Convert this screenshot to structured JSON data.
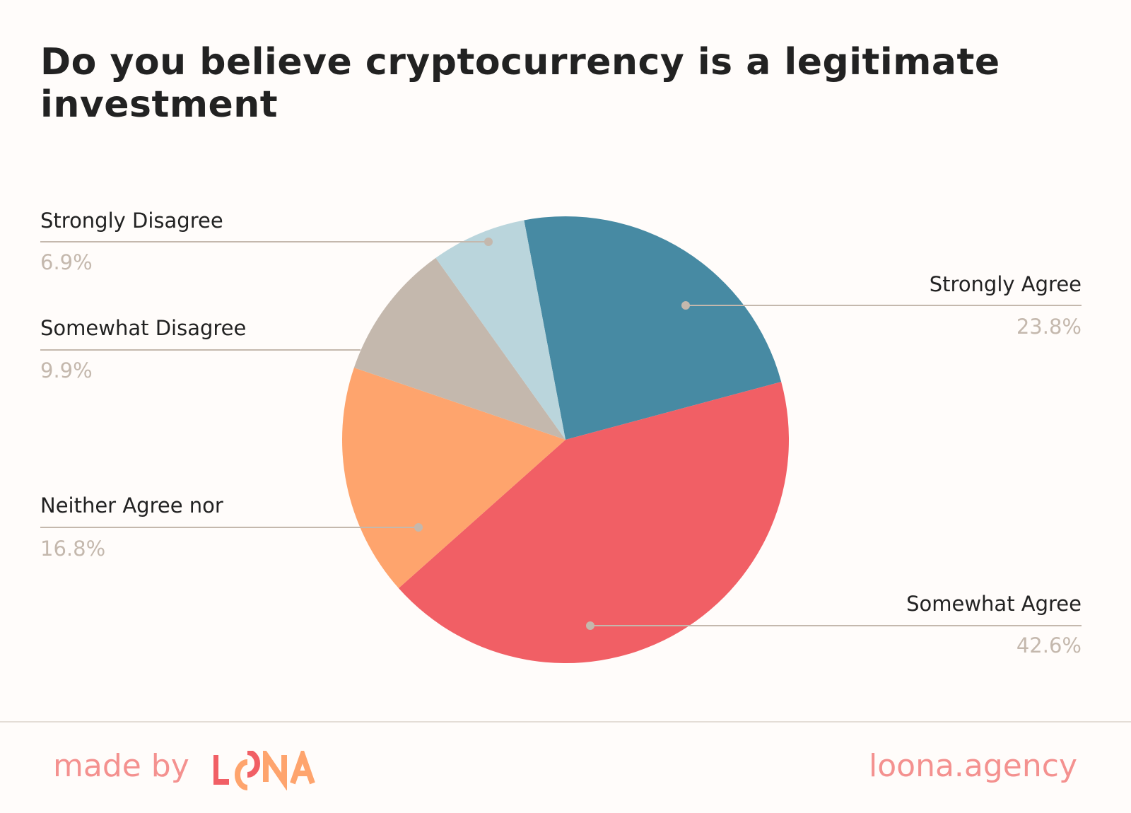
{
  "chart_data": {
    "type": "pie",
    "title": "Do you believe cryptocurrency is a legitimate investment",
    "start_angle_deg": -10.7,
    "direction": "clockwise",
    "slices": [
      {
        "label": "Strongly Agree",
        "value": 23.8,
        "pct_label": "23.8%",
        "color": "#478aa3"
      },
      {
        "label": "Somewhat Agree",
        "value": 42.6,
        "pct_label": "42.6%",
        "color": "#f15f65"
      },
      {
        "label": "Neither Agree nor",
        "value": 16.8,
        "pct_label": "16.8%",
        "color": "#fea46d"
      },
      {
        "label": "Somewhat Disagree",
        "value": 9.9,
        "pct_label": "9.9%",
        "color": "#c4b8ad"
      },
      {
        "label": "Strongly Disagree",
        "value": 6.9,
        "pct_label": "6.9%",
        "color": "#bad5dc"
      }
    ],
    "leader_color": "#c4b8ad"
  },
  "footer": {
    "made_by": "made by",
    "logo": "LOONA",
    "site": "loona.agency",
    "logo_colors": {
      "red": "#f15f65",
      "orange": "#fea46d"
    }
  }
}
